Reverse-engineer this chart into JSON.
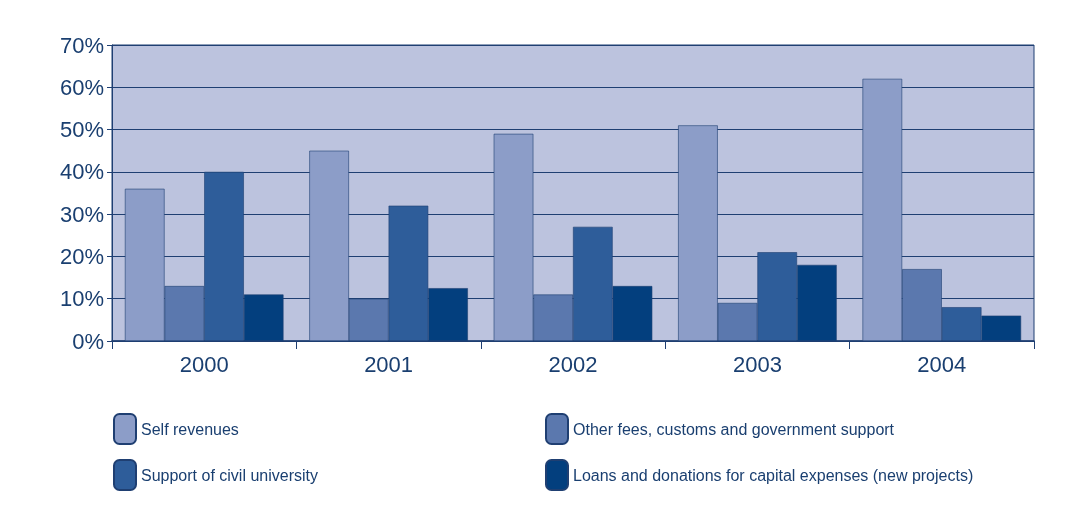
{
  "chart_data": {
    "type": "bar",
    "categories": [
      "2000",
      "2001",
      "2002",
      "2003",
      "2004"
    ],
    "series": [
      {
        "name": "Self revenues",
        "color": "#8c9dc8",
        "values": [
          36,
          45,
          49,
          51,
          62
        ]
      },
      {
        "name": "Other fees, customs and government support",
        "color": "#5b78ae",
        "values": [
          13,
          10,
          11,
          9,
          17
        ]
      },
      {
        "name": "Support of civil university",
        "color": "#2e5d9a",
        "values": [
          40,
          32,
          27,
          21,
          8
        ]
      },
      {
        "name": "Loans and donations for capital expenses (new projects)",
        "color": "#033f7e",
        "values": [
          11,
          12.5,
          13,
          18,
          6
        ]
      }
    ],
    "ylim": [
      0,
      70
    ],
    "yticks": [
      {
        "value": 0,
        "label": "0%"
      },
      {
        "value": 10,
        "label": "10%"
      },
      {
        "value": 20,
        "label": "20%"
      },
      {
        "value": 30,
        "label": "30%"
      },
      {
        "value": 40,
        "label": "40%"
      },
      {
        "value": 50,
        "label": "50%"
      },
      {
        "value": 60,
        "label": "60%"
      },
      {
        "value": 70,
        "label": "70%"
      }
    ],
    "grid": "y",
    "legend": "bottom"
  }
}
